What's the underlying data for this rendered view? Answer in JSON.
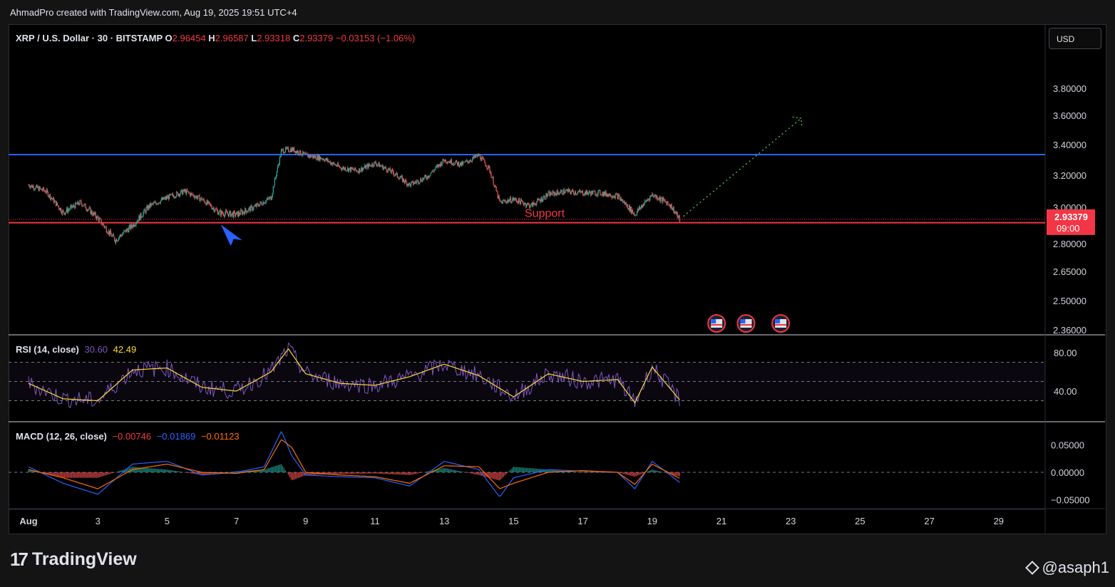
{
  "header": {
    "attribution": "AhmadPro created with TradingView.com, Aug 19, 2025 19:51 UTC+4"
  },
  "ticker": {
    "symbol": "XRP / U.S. Dollar · 30 · BITSTAMP",
    "open_label": "O",
    "open": "2.96454",
    "high_label": "H",
    "high": "2.96587",
    "low_label": "L",
    "low": "2.93318",
    "close_label": "C",
    "close": "2.93379",
    "change": "−0.03153 (−1.06%)"
  },
  "currency_button": "USD",
  "price_axis": {
    "ticks": [
      "3.80000",
      "3.60000",
      "3.40000",
      "3.20000",
      "3.00000",
      "2.80000",
      "2.65000",
      "2.50000",
      "2.36000"
    ],
    "last_price": "2.93379",
    "countdown": "09:00"
  },
  "annotations": {
    "support_label": "Support"
  },
  "rsi": {
    "title": "RSI (14, close)",
    "value": "30.60",
    "ma_value": "42.49",
    "ticks": [
      "80.00",
      "40.00"
    ]
  },
  "macd": {
    "title": "MACD (12, 26, close)",
    "hist": "−0.00746",
    "macd": "−0.01869",
    "signal": "−0.01123",
    "ticks": [
      "0.05000",
      "0.00000",
      "−0.05000"
    ]
  },
  "time_axis": {
    "labels": [
      "Aug",
      "3",
      "5",
      "7",
      "9",
      "11",
      "13",
      "15",
      "17",
      "19",
      "21",
      "23",
      "25",
      "27",
      "29"
    ]
  },
  "footer": {
    "brand": "TradingView",
    "watermark": "@asaph1"
  },
  "colors": {
    "up": "#26a69a",
    "down": "#ef5350",
    "resistance": "#2962ff",
    "support": "#f23645",
    "rsi_line": "#7e57c2",
    "rsi_ma": "#fdd835",
    "macd_line": "#2962ff",
    "signal_line": "#ff6d00",
    "projection": "#4caf50"
  },
  "chart_data": {
    "type": "candlestick",
    "symbol": "XRP / U.S. Dollar",
    "interval": "30",
    "exchange": "BITSTAMP",
    "x_labels": [
      "Aug",
      "3",
      "5",
      "7",
      "9",
      "11",
      "13",
      "15",
      "17",
      "19",
      "21",
      "23",
      "25",
      "27",
      "29"
    ],
    "price_path": {
      "x": [
        "Aug 1",
        "Aug 1.5",
        "Aug 2",
        "Aug 2.5",
        "Aug 3",
        "Aug 3.5",
        "Aug 4",
        "Aug 4.5",
        "Aug 5",
        "Aug 5.5",
        "Aug 6",
        "Aug 6.5",
        "Aug 7",
        "Aug 7.5",
        "Aug 8",
        "Aug 8.3",
        "Aug 8.6",
        "Aug 9",
        "Aug 9.5",
        "Aug 10",
        "Aug 10.5",
        "Aug 11",
        "Aug 11.5",
        "Aug 12",
        "Aug 12.5",
        "Aug 13",
        "Aug 13.5",
        "Aug 14",
        "Aug 14.3",
        "Aug 14.6",
        "Aug 15",
        "Aug 15.5",
        "Aug 16",
        "Aug 16.5",
        "Aug 17",
        "Aug 17.5",
        "Aug 18",
        "Aug 18.5",
        "Aug 19",
        "Aug 19.5",
        "Aug 19.8"
      ],
      "close": [
        3.14,
        3.1,
        2.97,
        3.03,
        2.94,
        2.82,
        2.9,
        3.01,
        3.06,
        3.1,
        3.05,
        2.97,
        2.96,
        3.0,
        3.06,
        3.36,
        3.37,
        3.33,
        3.31,
        3.25,
        3.23,
        3.28,
        3.22,
        3.14,
        3.19,
        3.3,
        3.27,
        3.33,
        3.24,
        3.03,
        3.05,
        3.01,
        3.08,
        3.1,
        3.09,
        3.09,
        3.07,
        2.96,
        3.08,
        3.02,
        2.93
      ]
    },
    "support_level": 2.915,
    "resistance_level": 3.335,
    "projection": {
      "from": [
        "Aug 19.9",
        2.95
      ],
      "to": [
        "Aug 23.3",
        3.58
      ]
    },
    "last_price": 2.93379,
    "y_ticks": [
      3.8,
      3.6,
      3.4,
      3.2,
      3.0,
      2.8,
      2.65,
      2.5,
      2.36
    ],
    "rsi": {
      "ticks": [
        80,
        40
      ],
      "bands": [
        70,
        50,
        30
      ],
      "x": [
        "Aug 1",
        "Aug 2",
        "Aug 3",
        "Aug 4",
        "Aug 5",
        "Aug 6",
        "Aug 7",
        "Aug 8",
        "Aug 8.5",
        "Aug 9",
        "Aug 10",
        "Aug 11",
        "Aug 12",
        "Aug 13",
        "Aug 14",
        "Aug 15",
        "Aug 16",
        "Aug 17",
        "Aug 18",
        "Aug 18.5",
        "Aug 19",
        "Aug 19.8"
      ],
      "values": [
        48,
        32,
        30,
        62,
        64,
        44,
        40,
        60,
        84,
        58,
        48,
        46,
        55,
        68,
        56,
        34,
        58,
        50,
        52,
        28,
        65,
        30.6
      ]
    },
    "macd": {
      "ticks": [
        0.05,
        0.0,
        -0.05
      ],
      "x": [
        "Aug 1",
        "Aug 2",
        "Aug 3",
        "Aug 4",
        "Aug 5",
        "Aug 6",
        "Aug 7",
        "Aug 7.8",
        "Aug 8.3",
        "Aug 8.6",
        "Aug 9",
        "Aug 10",
        "Aug 11",
        "Aug 12",
        "Aug 13",
        "Aug 14",
        "Aug 14.6",
        "Aug 15",
        "Aug 16",
        "Aug 17",
        "Aug 18",
        "Aug 18.5",
        "Aug 19",
        "Aug 19.8"
      ],
      "macd": [
        0.01,
        -0.02,
        -0.04,
        0.015,
        0.02,
        -0.005,
        0.0,
        0.01,
        0.075,
        0.03,
        -0.005,
        -0.008,
        -0.01,
        -0.025,
        0.02,
        0.005,
        -0.045,
        -0.01,
        0.005,
        0.002,
        0.0,
        -0.03,
        0.02,
        -0.01869
      ],
      "signal": [
        0.005,
        -0.01,
        -0.03,
        0.005,
        0.015,
        0.0,
        -0.002,
        0.005,
        0.06,
        0.045,
        0.0,
        -0.005,
        -0.008,
        -0.02,
        0.012,
        0.01,
        -0.03,
        -0.02,
        0.0,
        0.003,
        0.0,
        -0.022,
        0.015,
        -0.01123
      ]
    }
  }
}
